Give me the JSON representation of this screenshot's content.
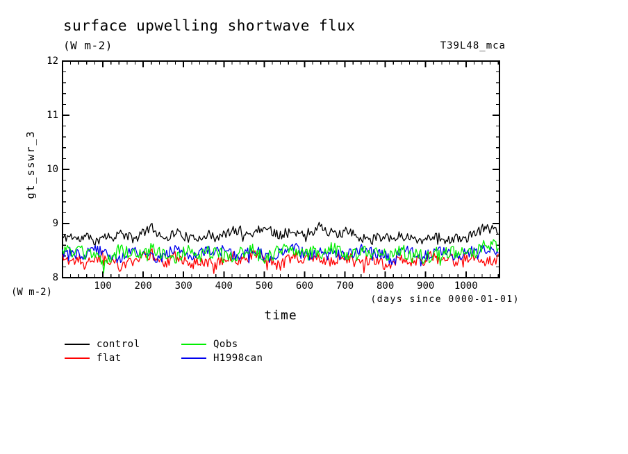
{
  "page": {
    "title": "surface upwelling shortwave flux",
    "subtitle": "(W m-2)",
    "dataset_tag": "T39L48_mca"
  },
  "axes": {
    "y_title": "gt_sswr_3",
    "y_unit": "(W m-2)",
    "x_title": "time",
    "x_note": "(days since 0000-01-01)"
  },
  "legend": {
    "items": [
      {
        "label": "control",
        "color": "#000000"
      },
      {
        "label": "flat",
        "color": "#ff0000"
      },
      {
        "label": "Qobs",
        "color": "#00ee00"
      },
      {
        "label": "H1998can",
        "color": "#0000ee"
      }
    ]
  },
  "chart_data": {
    "type": "line",
    "title": "surface upwelling shortwave flux",
    "ylabel": "gt_sswr_3 (W m-2)",
    "xlabel": "time (days since 0000-01-01)",
    "xlim": [
      0,
      1083
    ],
    "ylim": [
      8,
      12
    ],
    "xticks": [
      100,
      200,
      300,
      400,
      500,
      600,
      700,
      800,
      900,
      1000
    ],
    "x_minor_step": 20,
    "yticks": [
      8,
      9,
      10,
      11,
      12
    ],
    "y_minor_step": 0.2,
    "grid": false,
    "legend_position": "below",
    "x_start": 0,
    "x_step": 20,
    "series": [
      {
        "name": "flat",
        "color": "#ff0000",
        "noise": 0.11,
        "seed": 22,
        "range": [
          8.02,
          8.62
        ],
        "values": [
          8.4,
          8.3,
          8.36,
          8.28,
          8.34,
          8.42,
          8.3,
          8.2,
          8.34,
          8.3,
          8.4,
          8.44,
          8.34,
          8.28,
          8.38,
          8.3,
          8.24,
          8.34,
          8.3,
          8.24,
          8.34,
          8.4,
          8.3,
          8.36,
          8.44,
          8.34,
          8.24,
          8.2,
          8.34,
          8.4,
          8.34,
          8.3,
          8.38,
          8.3,
          8.34,
          8.4,
          8.3,
          8.24,
          8.34,
          8.3,
          8.24,
          8.3,
          8.36,
          8.26,
          8.3,
          8.34,
          8.4,
          8.3,
          8.34,
          8.3,
          8.36,
          8.4,
          8.34,
          8.3,
          8.36
        ]
      },
      {
        "name": "H1998can",
        "color": "#0000ee",
        "noise": 0.1,
        "seed": 44,
        "range": [
          8.08,
          8.68
        ],
        "values": [
          8.46,
          8.5,
          8.4,
          8.46,
          8.54,
          8.46,
          8.4,
          8.34,
          8.46,
          8.5,
          8.44,
          8.4,
          8.34,
          8.46,
          8.5,
          8.46,
          8.4,
          8.44,
          8.5,
          8.46,
          8.54,
          8.44,
          8.4,
          8.46,
          8.5,
          8.4,
          8.34,
          8.46,
          8.5,
          8.54,
          8.44,
          8.4,
          8.46,
          8.5,
          8.44,
          8.4,
          8.46,
          8.54,
          8.5,
          8.44,
          8.4,
          8.34,
          8.46,
          8.5,
          8.44,
          8.4,
          8.46,
          8.5,
          8.44,
          8.4,
          8.46,
          8.5,
          8.52,
          8.55,
          8.5
        ]
      },
      {
        "name": "Qobs",
        "color": "#00ee00",
        "noise": 0.13,
        "seed": 33,
        "range": [
          7.98,
          8.78
        ],
        "values": [
          8.5,
          8.46,
          8.54,
          8.4,
          8.44,
          8.18,
          8.4,
          8.5,
          8.46,
          8.4,
          8.5,
          8.54,
          8.44,
          8.38,
          8.34,
          8.46,
          8.5,
          8.4,
          8.46,
          8.5,
          8.4,
          8.34,
          8.44,
          8.54,
          8.5,
          8.28,
          8.44,
          8.5,
          8.54,
          8.46,
          8.4,
          8.5,
          8.46,
          8.54,
          8.5,
          8.44,
          8.4,
          8.46,
          8.5,
          8.44,
          8.4,
          8.46,
          8.5,
          8.4,
          8.44,
          8.34,
          8.46,
          8.4,
          8.46,
          8.5,
          8.44,
          8.46,
          8.56,
          8.62,
          8.55
        ]
      },
      {
        "name": "control",
        "color": "#000000",
        "noise": 0.09,
        "seed": 11,
        "range": [
          8.55,
          9.12
        ],
        "values": [
          8.72,
          8.78,
          8.7,
          8.76,
          8.68,
          8.8,
          8.74,
          8.82,
          8.77,
          8.7,
          8.85,
          8.93,
          8.8,
          8.74,
          8.85,
          8.78,
          8.7,
          8.76,
          8.8,
          8.72,
          8.79,
          8.86,
          8.88,
          8.79,
          8.86,
          8.95,
          8.84,
          8.8,
          8.86,
          8.78,
          8.82,
          8.88,
          8.96,
          8.85,
          8.78,
          8.86,
          8.8,
          8.72,
          8.78,
          8.74,
          8.79,
          8.72,
          8.78,
          8.74,
          8.7,
          8.72,
          8.78,
          8.72,
          8.68,
          8.74,
          8.72,
          8.8,
          8.9,
          8.97,
          8.84
        ]
      }
    ]
  }
}
